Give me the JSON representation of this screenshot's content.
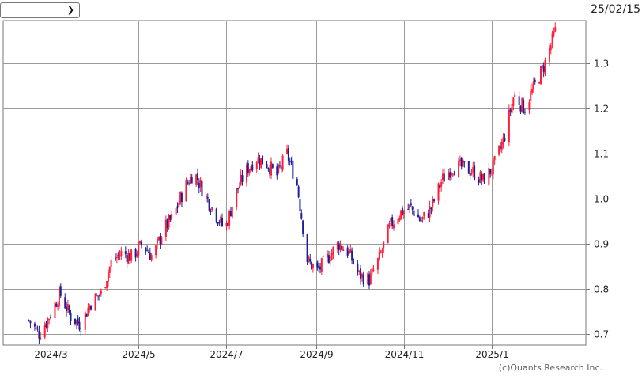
{
  "controls": {
    "period_select_value": "",
    "chevron_icon": "chevron-down-icon"
  },
  "date_stamp": "25/02/15",
  "copyright": "(c)Quants Research Inc.",
  "colors": {
    "up": "#ff1f3a",
    "down": "#1f1f9a",
    "grid": "#9a9a9a",
    "frame": "#777777"
  },
  "chart_data": {
    "type": "candlestick",
    "title": "",
    "xlabel": "",
    "ylabel": "",
    "ylim": [
      0.675,
      1.395
    ],
    "y_ticks": [
      0.7,
      0.8,
      0.9,
      1.0,
      1.1,
      1.2,
      1.3
    ],
    "x_tick_labels": [
      "2024/3",
      "2024/5",
      "2024/7",
      "2024/9",
      "2024/11",
      "2025/1"
    ],
    "x_ticks_dates": [
      "2024-03-01",
      "2024-05-01",
      "2024-07-01",
      "2024-09-01",
      "2024-11-01",
      "2025-01-01"
    ],
    "grid": true,
    "series": [
      {
        "date_range": [
          "2024-02-15",
          "2025-02-14"
        ],
        "close": [
          0.73,
          0.7,
          0.74,
          0.79,
          0.74,
          0.72,
          0.77,
          0.79,
          0.86,
          0.88,
          0.87,
          0.9,
          0.87,
          0.93,
          0.96,
          1.02,
          1.06,
          1.01,
          0.97,
          0.93,
          1.01,
          1.06,
          1.09,
          1.08,
          1.05,
          1.1,
          1.03,
          0.86,
          0.84,
          0.87,
          0.9,
          0.88,
          0.83,
          0.82,
          0.87,
          0.94,
          0.97,
          0.98,
          0.95,
          0.98,
          1.04,
          1.07,
          1.07,
          1.06,
          1.04,
          1.07,
          1.13,
          1.23,
          1.2,
          1.25,
          1.3,
          1.37
        ]
      }
    ]
  }
}
